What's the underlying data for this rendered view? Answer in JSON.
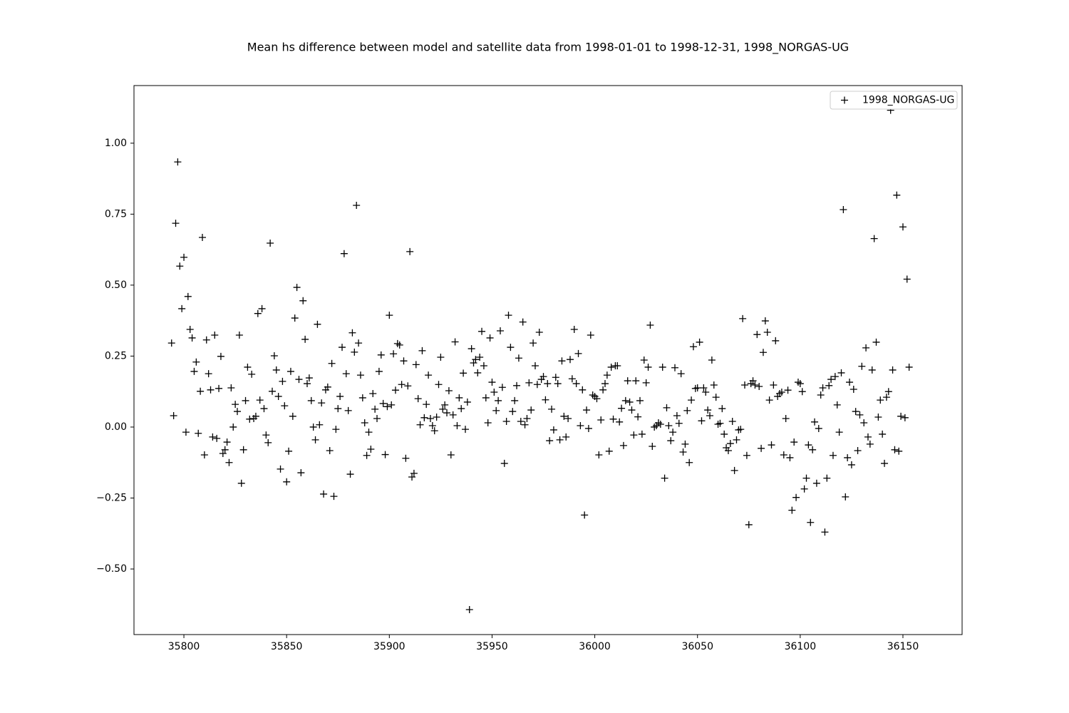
{
  "chart_data": {
    "type": "scatter",
    "title": "Mean hs difference between model and satellite data from 1998-01-01 to 1998-12-31, 1998_NORGAS-UG",
    "xlim": [
      35775.7,
      36178.8
    ],
    "ylim": [
      -0.731,
      1.203
    ],
    "xticks": [
      35800,
      35850,
      35900,
      35950,
      36000,
      36050,
      36100,
      36150
    ],
    "yticks": [
      {
        "value": -0.5,
        "label": "−0.50"
      },
      {
        "value": -0.25,
        "label": "−0.25"
      },
      {
        "value": 0,
        "label": "0.00"
      },
      {
        "value": 0.25,
        "label": "0.25"
      },
      {
        "value": 0.5,
        "label": "0.50"
      },
      {
        "value": 0.75,
        "label": "0.75"
      },
      {
        "value": 1.0,
        "label": "1.00"
      }
    ],
    "legend": "upper right",
    "series": [
      {
        "name": "1998_NORGAS-UG",
        "color": "#000000",
        "x": [
          35794,
          35795,
          35796,
          35797,
          35798,
          35799,
          35800,
          35801,
          35802,
          35803,
          35804,
          35805,
          35806,
          35807,
          35808,
          35809,
          35810,
          35811,
          35812,
          35813,
          35814,
          35815,
          35816,
          35817,
          35818,
          35819,
          35820,
          35821,
          35822,
          35823,
          35824,
          35825,
          35826,
          35827,
          35828,
          35829,
          35830,
          35831,
          35832,
          35833,
          35834,
          35835,
          35836,
          35837,
          35838,
          35839,
          35840,
          35841,
          35842,
          35843,
          35844,
          35845,
          35846,
          35847,
          35848,
          35849,
          35850,
          35851,
          35852,
          35853,
          35854,
          35855,
          35856,
          35857,
          35858,
          35859,
          35860,
          35861,
          35862,
          35863,
          35864,
          35865,
          35866,
          35867,
          35868,
          35869,
          35870,
          35871,
          35872,
          35873,
          35874,
          35875,
          35876,
          35877,
          35878,
          35879,
          35880,
          35881,
          35882,
          35883,
          35884,
          35885,
          35886,
          35887,
          35888,
          35889,
          35890,
          35891,
          35892,
          35893,
          35894,
          35895,
          35896,
          35897,
          35898,
          35899,
          35900,
          35901,
          35902,
          35903,
          35904,
          35905,
          35906,
          35907,
          35908,
          35909,
          35910,
          35911,
          35912,
          35913,
          35914,
          35915,
          35916,
          35917,
          35918,
          35919,
          35920,
          35921,
          35922,
          35923,
          35924,
          35925,
          35926,
          35927,
          35928,
          35929,
          35930,
          35931,
          35932,
          35933,
          35934,
          35935,
          35936,
          35937,
          35938,
          35939,
          35940,
          35941,
          35942,
          35943,
          35944,
          35945,
          35946,
          35947,
          35948,
          35949,
          35950,
          35951,
          35952,
          35953,
          35954,
          35955,
          35956,
          35957,
          35958,
          35959,
          35960,
          35961,
          35962,
          35963,
          35964,
          35965,
          35966,
          35967,
          35968,
          35969,
          35970,
          35971,
          35972,
          35973,
          35974,
          35975,
          35976,
          35977,
          35978,
          35979,
          35980,
          35981,
          35982,
          35983,
          35984,
          35985,
          35986,
          35987,
          35988,
          35989,
          35990,
          35991,
          35992,
          35993,
          35994,
          35995,
          35996,
          35997,
          35998,
          35999,
          36000,
          36001,
          36002,
          36003,
          36004,
          36005,
          36006,
          36007,
          36008,
          36009,
          36010,
          36011,
          36012,
          36013,
          36014,
          36015,
          36016,
          36017,
          36018,
          36019,
          36020,
          36021,
          36022,
          36023,
          36024,
          36025,
          36026,
          36027,
          36028,
          36029,
          36030,
          36031,
          36032,
          36033,
          36034,
          36035,
          36036,
          36037,
          36038,
          36039,
          36040,
          36041,
          36042,
          36043,
          36044,
          36045,
          36046,
          36047,
          36048,
          36049,
          36050,
          36051,
          36052,
          36053,
          36054,
          36055,
          36056,
          36057,
          36058,
          36059,
          36060,
          36061,
          36062,
          36063,
          36064,
          36065,
          36066,
          36067,
          36068,
          36069,
          36070,
          36071,
          36072,
          36073,
          36074,
          36075,
          36076,
          36077,
          36078,
          36079,
          36080,
          36081,
          36082,
          36083,
          36084,
          36085,
          36086,
          36087,
          36088,
          36089,
          36090,
          36091,
          36092,
          36093,
          36094,
          36095,
          36096,
          36097,
          36098,
          36099,
          36100,
          36101,
          36102,
          36103,
          36104,
          36105,
          36106,
          36107,
          36108,
          36109,
          36110,
          36111,
          36112,
          36113,
          36114,
          36115,
          36116,
          36117,
          36118,
          36119,
          36120,
          36121,
          36122,
          36123,
          36124,
          36125,
          36126,
          36127,
          36128,
          36129,
          36130,
          36131,
          36132,
          36133,
          36134,
          36135,
          36136,
          36137,
          36138,
          36139,
          36140,
          36141,
          36142,
          36143,
          36144,
          36145,
          36146,
          36147,
          36148,
          36149,
          36150,
          36151,
          36152,
          36153
        ],
        "values": [
          0.296,
          0.04,
          0.718,
          0.934,
          0.567,
          0.417,
          0.598,
          -0.018,
          0.46,
          0.344,
          0.314,
          0.196,
          0.229,
          -0.022,
          0.126,
          0.668,
          -0.098,
          0.307,
          0.188,
          0.131,
          -0.035,
          0.324,
          -0.04,
          0.136,
          0.249,
          -0.093,
          -0.08,
          -0.053,
          -0.125,
          0.138,
          0.0,
          0.08,
          0.055,
          0.324,
          -0.198,
          -0.08,
          0.093,
          0.211,
          0.028,
          0.186,
          0.03,
          0.038,
          0.4,
          0.095,
          0.417,
          0.065,
          -0.028,
          -0.055,
          0.648,
          0.126,
          0.251,
          0.201,
          0.108,
          -0.148,
          0.161,
          0.075,
          -0.193,
          -0.085,
          0.196,
          0.038,
          0.384,
          0.492,
          0.168,
          -0.161,
          0.445,
          0.309,
          0.153,
          0.173,
          0.093,
          0.0,
          -0.045,
          0.362,
          0.008,
          0.085,
          -0.236,
          0.131,
          0.141,
          -0.083,
          0.224,
          -0.244,
          -0.008,
          0.065,
          0.108,
          0.281,
          0.611,
          0.188,
          0.058,
          -0.166,
          0.332,
          0.264,
          0.781,
          0.296,
          0.183,
          0.103,
          0.015,
          -0.1,
          -0.018,
          -0.078,
          0.118,
          0.063,
          0.03,
          0.196,
          0.254,
          0.083,
          -0.097,
          0.072,
          0.394,
          0.078,
          0.258,
          0.13,
          0.294,
          0.289,
          0.15,
          0.233,
          -0.11,
          0.145,
          0.618,
          -0.176,
          -0.163,
          0.22,
          0.1,
          0.008,
          0.269,
          0.033,
          0.08,
          0.183,
          0.03,
          0.005,
          -0.013,
          0.035,
          0.15,
          0.246,
          0.063,
          0.078,
          0.05,
          0.128,
          -0.098,
          0.043,
          0.3,
          0.005,
          0.103,
          0.065,
          0.19,
          -0.008,
          0.088,
          -0.643,
          0.276,
          0.226,
          0.238,
          0.191,
          0.246,
          0.337,
          0.216,
          0.103,
          0.015,
          0.314,
          0.158,
          0.123,
          0.058,
          0.093,
          0.339,
          0.14,
          -0.128,
          0.02,
          0.394,
          0.281,
          0.055,
          0.093,
          0.146,
          0.243,
          0.02,
          0.37,
          0.008,
          0.03,
          0.156,
          0.06,
          0.296,
          0.216,
          0.15,
          0.334,
          0.168,
          0.178,
          0.096,
          0.153,
          -0.048,
          0.063,
          -0.01,
          0.175,
          0.153,
          -0.045,
          0.233,
          0.038,
          -0.035,
          0.03,
          0.238,
          0.17,
          0.344,
          0.153,
          0.259,
          0.005,
          0.131,
          -0.31,
          0.06,
          -0.005,
          0.324,
          0.113,
          0.108,
          0.1,
          -0.098,
          0.025,
          0.131,
          0.153,
          0.183,
          -0.085,
          0.211,
          0.028,
          0.216,
          0.216,
          0.018,
          0.066,
          -0.065,
          0.093,
          0.163,
          0.088,
          0.06,
          -0.028,
          0.163,
          0.036,
          0.093,
          -0.025,
          0.236,
          0.156,
          0.211,
          0.359,
          -0.068,
          0.0,
          0.005,
          0.015,
          0.01,
          0.211,
          -0.18,
          0.068,
          0.005,
          -0.048,
          -0.018,
          0.209,
          0.04,
          0.013,
          0.188,
          -0.088,
          -0.06,
          0.058,
          -0.125,
          0.095,
          0.283,
          0.136,
          0.138,
          0.299,
          0.022,
          0.138,
          0.123,
          0.06,
          0.04,
          0.236,
          0.148,
          0.105,
          0.01,
          0.013,
          0.065,
          -0.025,
          -0.073,
          -0.083,
          -0.058,
          0.02,
          -0.153,
          -0.045,
          -0.01,
          -0.008,
          0.382,
          0.148,
          -0.1,
          -0.344,
          0.153,
          0.163,
          0.148,
          0.326,
          0.143,
          -0.075,
          0.263,
          0.374,
          0.334,
          0.095,
          -0.063,
          0.148,
          0.304,
          0.108,
          0.118,
          0.123,
          -0.098,
          0.03,
          0.13,
          -0.108,
          -0.293,
          -0.053,
          -0.248,
          0.158,
          0.153,
          0.125,
          -0.218,
          -0.18,
          -0.063,
          -0.336,
          -0.08,
          0.018,
          -0.198,
          -0.005,
          0.113,
          0.138,
          -0.37,
          -0.18,
          0.146,
          0.168,
          -0.1,
          0.178,
          0.078,
          -0.018,
          0.191,
          0.766,
          -0.246,
          -0.108,
          0.158,
          -0.133,
          0.133,
          0.055,
          -0.083,
          0.043,
          0.214,
          0.015,
          0.279,
          -0.035,
          -0.06,
          0.201,
          0.664,
          0.299,
          0.035,
          0.095,
          -0.025,
          -0.128,
          0.105,
          0.125,
          1.116,
          0.201,
          -0.08,
          0.817,
          -0.085,
          0.038,
          0.705,
          0.033,
          0.521,
          0.211
        ]
      }
    ]
  }
}
